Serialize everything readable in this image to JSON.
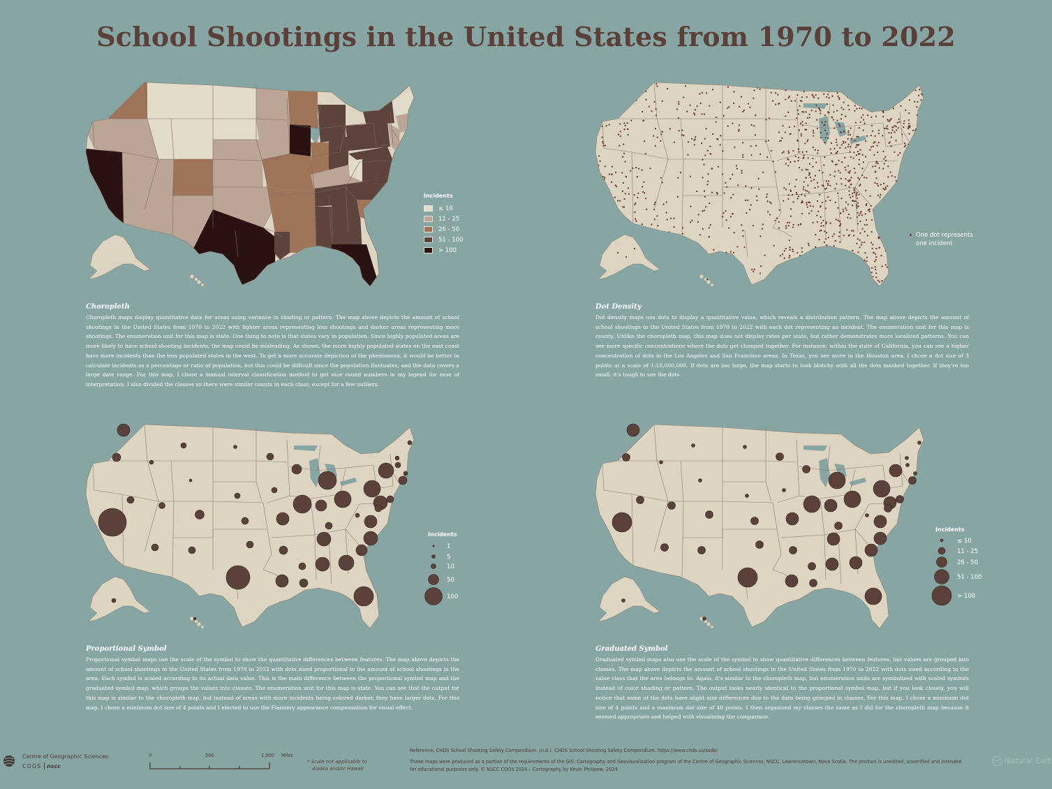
{
  "title": "School Shootings in the United States from 1970 to 2022",
  "colors": {
    "background": "#87a5a3",
    "land": "#ddd4c2",
    "border": "#8a7c70",
    "title": "#5a4038",
    "symbol": "#5a423b",
    "dot": "#6b3a2e",
    "class1": "#e3dccb",
    "class2": "#bba596",
    "class3": "#a07459",
    "class4": "#5c433c",
    "class5": "#2a1212"
  },
  "choropleth_legend": {
    "title": "Incidents",
    "classes": [
      "≤ 10",
      "11 - 25",
      "26 - 50",
      "51 - 100",
      "> 100"
    ]
  },
  "dot_density_legend": {
    "line1": "One dot represents",
    "line2": "one incident"
  },
  "proportional_legend": {
    "title": "Incidents",
    "values": [
      "1",
      "5",
      "10",
      "50",
      "100"
    ]
  },
  "graduated_legend": {
    "title": "Incidents",
    "classes": [
      "≤ 10",
      "11 - 25",
      "26 - 50",
      "51 - 100",
      "> 100"
    ]
  },
  "sections": {
    "choropleth": {
      "heading": "Choropleth",
      "text": "Choropleth maps display quantitative data for areas using variance in shading or pattern. The map above depicts the amount of school shootings in the United States from 1970 to 2022 with lighter areas representing less shootings and darker areas representing more shootings. The enumeration unit for this map is state. One thing to note is that states vary in population. Since highly populated areas are more likely to have school shooting incidents, the map could be misleading. As shown, the more highly populated states on the east coast have more incidents than the less populated states in the west. To get a more accurate depiction of the phenomena, it would be better to calculate incidents as a percentage or ratio of population, but this could be difficult since the population fluctuates, and the data covers a large date range. For this map, I chose a manual interval classification method to get nice round numbers in my legend for ease of interpretation. I also divided the classes so there were similar counts in each class, except for a few outliers."
    },
    "dot_density": {
      "heading": "Dot Density",
      "text": "Dot density maps use dots to display a quantitative value, which reveals a distribution pattern. The map above depicts the amount of school shootings in the United States from 1970 to 2022 with each dot representing an incident. The enumeration unit for this map is county. Unlike the choropleth map, this map does not display rates per state, but rather demonstrates more localized patterns. You can see more specific concentrations where the dots get clumped together. For instance, within the state of California, you can see a higher concentration of dots in the Los Angeles and San Francisco areas. In Texas, you see more in the Houston area. I chose a dot size of 3 points at a scale of 1:18,000,000. If dots are too large, the map starts to look blotchy with all the dots mashed together. If they're too small, it's tough to see the dots."
    },
    "proportional": {
      "heading": "Proportional Symbol",
      "text": "Proportional symbol maps use the scale of the symbol to show the quantitative differences between features. The map above depicts the amount of school shootings in the United States from 1970 to 2022 with dots sized proportional to the amount of school shootings in the area. Each symbol is scaled according to its actual data value. This is the main difference between the proportional symbol map and the graduated symbol map, which groups the values into classes. The enumeration unit for this map is state. You can see that the output for this map is similar to the choropleth map, but instead of areas with more incidents being colored darker, they have larger dots. For this map, I chose a minimum dot size of 4 points and I elected to use the Flannery appearance compensation for visual effect."
    },
    "graduated": {
      "heading": "Graduated Symbol",
      "text": "Graduated symbol maps also use the scale of the symbol to show quantitative differences between features, but values are grouped into classes. The map above depicts the amount of school shootings in the United States from 1970 to 2022 with dots sized according to the value class that the area belongs to. Again, it's similar to the choropleth map, but enumeration units are symbolized with scaled symbols instead of color shading or pattern. The output looks nearly identical to the proportional symbol map, but if you look closely, you will notice that some of the dots have slight size differences due to the data being grouped in classes. For this map, I chose a minimum dot size of 4 points and a maximum dot size of 40 points. I then organized my classes the same as I did for the choropleth map because it seemed appropriate and helped with visualizing the comparison."
    }
  },
  "footer": {
    "org_line1": "Centre of Geographic Sciences",
    "org_line2": "COGS",
    "org_line3": "nscc",
    "scale_ticks": [
      "0",
      "500",
      "1,000"
    ],
    "scale_unit": "Miles",
    "scale_note_line1": "Scale not applicable to",
    "scale_note_line2": "Alaska and/or Hawaii",
    "reference": "Reference: CHDS School Shooting Safety Compendium. (n.d.). CHDS School Shooting Safety Compendium. https://www.chds.us/ssdb/",
    "credit_line1": "These maps were produced as a portion of the requirements of the GIS: Cartography and Geovisualization program of the Centre of Geographic Sciences, NSCC, Lawrencetown, Nova Scotia. The product is unedited, unverified and intended",
    "credit_line2": "for educational purposes only. © NSCC COGS 2024 – Cartography by Kevin Philipow, 2024",
    "natural_earth": "Natural Earth"
  }
}
